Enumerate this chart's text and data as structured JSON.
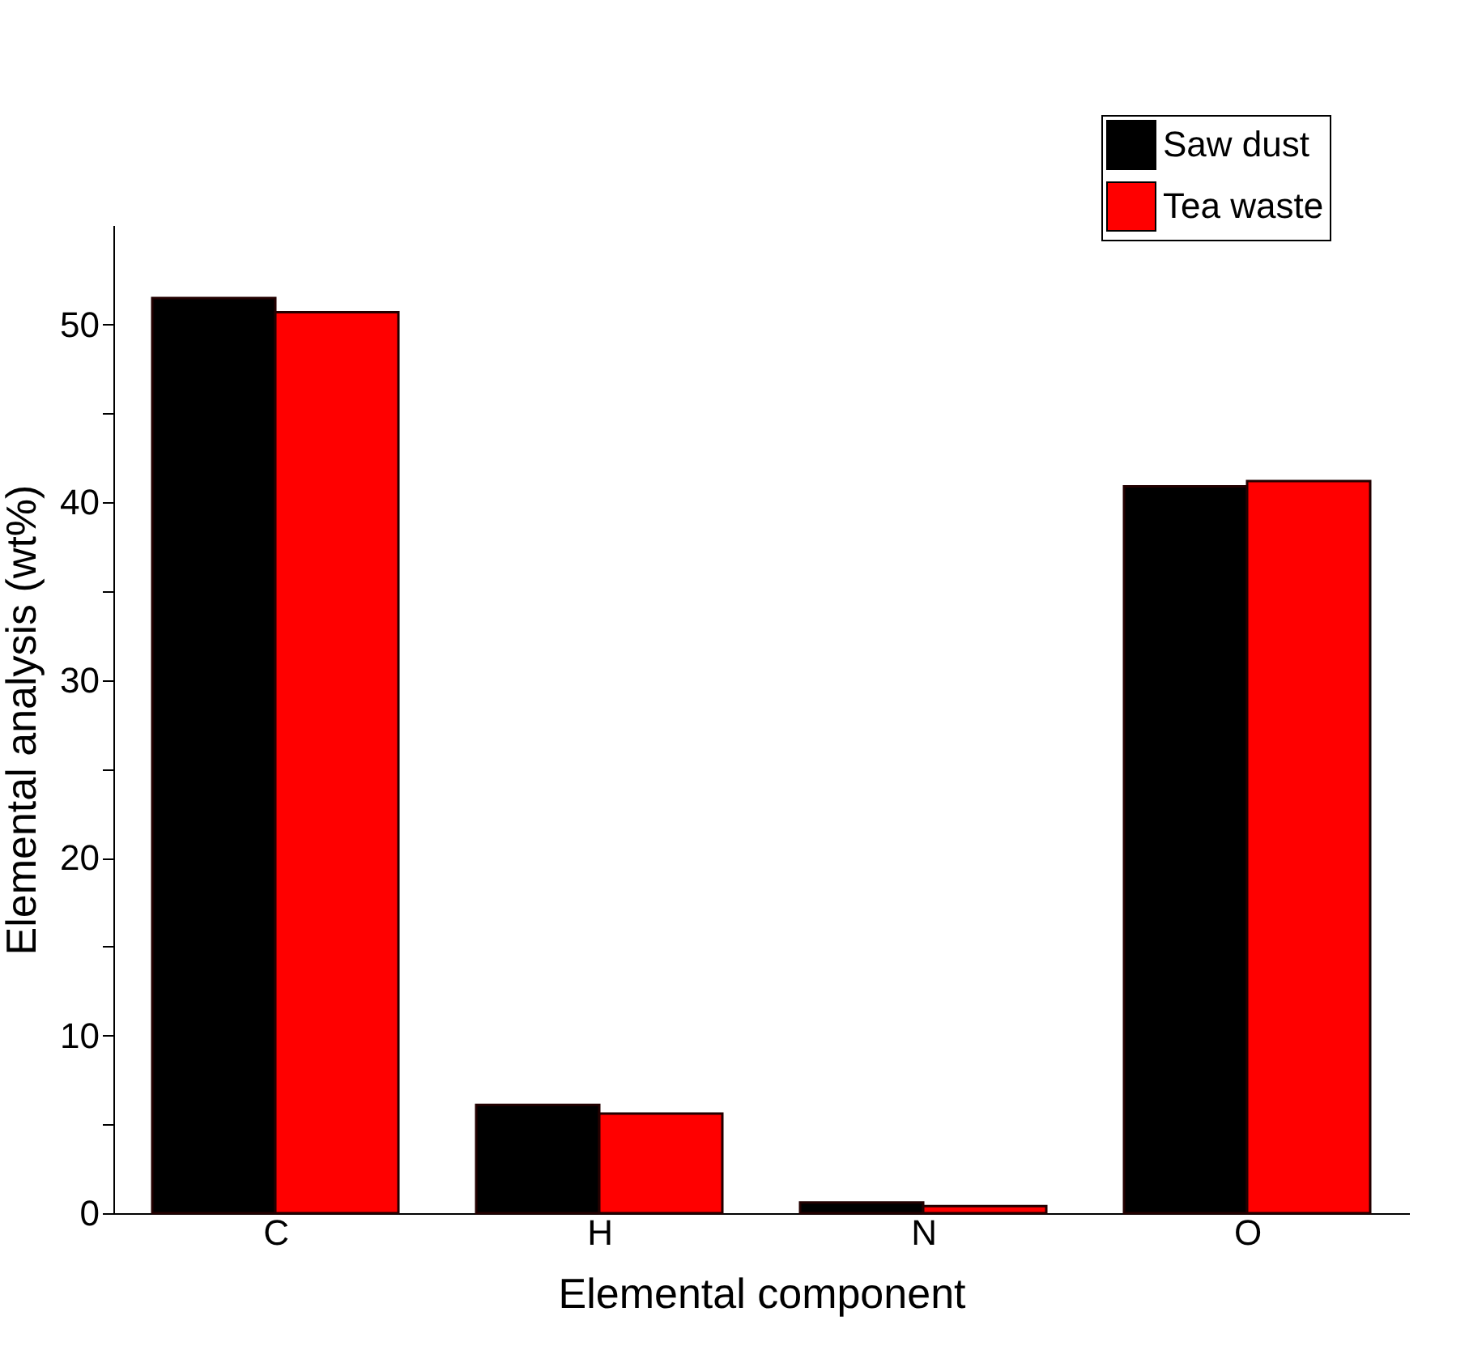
{
  "chart_data": {
    "type": "bar",
    "xlabel": "Elemental component",
    "ylabel": "Elemental analysis (wt%)",
    "categories": [
      "C",
      "H",
      "N",
      "O"
    ],
    "series": [
      {
        "name": "Saw dust",
        "color": "#000000",
        "values": [
          51.5,
          6.1,
          0.6,
          40.9
        ]
      },
      {
        "name": "Tea waste",
        "color": "#ff0000",
        "values": [
          50.7,
          5.6,
          0.4,
          41.2
        ]
      }
    ],
    "ylim": [
      0,
      55.6
    ],
    "yticks": [
      0,
      {
        "value": 5,
        "label": null
      },
      10,
      {
        "value": 15,
        "label": null
      },
      20,
      {
        "value": 25,
        "label": null
      },
      30,
      {
        "value": 35,
        "label": null
      },
      40,
      {
        "value": 45,
        "label": null
      },
      50
    ],
    "grid": false,
    "legend": "top right"
  }
}
